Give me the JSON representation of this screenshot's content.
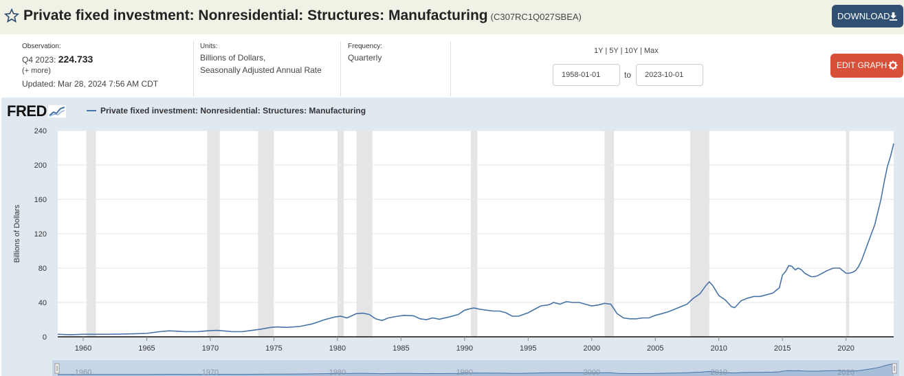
{
  "header": {
    "title": "Private fixed investment: Nonresidential: Structures: Manufacturing",
    "series_id": "(C307RC1Q027SBEA)",
    "download_label": "DOWNLOAD",
    "edit_label": "EDIT GRAPH"
  },
  "meta": {
    "observation_label": "Observation:",
    "observation_period": "Q4 2023:",
    "observation_value": "224.733",
    "more_label": "(+ more)",
    "updated": "Updated: Mar 28, 2024 7:56 AM CDT",
    "units_label": "Units:",
    "units_line1": "Billions of Dollars,",
    "units_line2": "Seasonally Adjusted Annual Rate",
    "frequency_label": "Frequency:",
    "frequency_value": "Quarterly"
  },
  "range": {
    "r1": "1Y",
    "r5": "5Y",
    "r10": "10Y",
    "rmax": "Max",
    "sep": "|",
    "start": "1958-01-01",
    "to": "to",
    "end": "2023-10-01"
  },
  "logo": "FRED",
  "colors": {
    "line": "#4572a7",
    "recession": "#e5e5e5",
    "accent": "#305073",
    "edit": "#d9503a"
  },
  "chart_data": {
    "type": "line",
    "title": "Private fixed investment: Nonresidential: Structures: Manufacturing",
    "xlabel": "",
    "ylabel": "Billions of Dollars",
    "ylim": [
      0,
      240
    ],
    "xlim": [
      1958.0,
      2023.75
    ],
    "y_ticks": [
      0,
      40,
      80,
      120,
      160,
      200,
      240
    ],
    "x_ticks": [
      1960,
      1965,
      1970,
      1975,
      1980,
      1985,
      1990,
      1995,
      2000,
      2005,
      2010,
      2015,
      2020
    ],
    "navigator_ticks": [
      1960,
      1970,
      1980,
      1990,
      2000,
      2010,
      2020
    ],
    "grid": true,
    "legend": "top-left",
    "recessions": [
      [
        1960.25,
        1961.0
      ],
      [
        1969.75,
        1970.75
      ],
      [
        1973.75,
        1975.0
      ],
      [
        1980.0,
        1980.5
      ],
      [
        1981.5,
        1982.75
      ],
      [
        1990.5,
        1991.0
      ],
      [
        2001.0,
        2001.75
      ],
      [
        2007.75,
        2009.25
      ],
      [
        2020.0,
        2020.25
      ]
    ],
    "series": [
      {
        "name": "Private fixed investment: Nonresidential: Structures: Manufacturing",
        "x": [
          1958.0,
          1959.0,
          1960.0,
          1961.0,
          1962.0,
          1963.0,
          1964.0,
          1965.0,
          1966.0,
          1966.75,
          1967.5,
          1968.0,
          1969.0,
          1969.75,
          1970.5,
          1971.0,
          1971.75,
          1972.5,
          1973.0,
          1974.0,
          1974.75,
          1975.25,
          1976.0,
          1977.0,
          1978.0,
          1979.0,
          1979.75,
          1980.25,
          1980.75,
          1981.5,
          1982.0,
          1982.5,
          1983.0,
          1983.5,
          1984.0,
          1984.75,
          1985.25,
          1986.0,
          1986.5,
          1987.0,
          1987.5,
          1988.0,
          1988.75,
          1989.5,
          1990.0,
          1990.5,
          1990.75,
          1991.25,
          1991.75,
          1992.25,
          1992.75,
          1993.25,
          1993.75,
          1994.25,
          1995.0,
          1995.5,
          1996.0,
          1996.5,
          1996.75,
          1997.0,
          1997.5,
          1998.0,
          1998.5,
          1999.0,
          1999.5,
          2000.0,
          2000.5,
          2001.0,
          2001.5,
          2002.0,
          2002.5,
          2003.0,
          2003.5,
          2004.0,
          2004.5,
          2005.0,
          2005.5,
          2006.0,
          2006.5,
          2007.0,
          2007.5,
          2008.0,
          2008.5,
          2008.75,
          2009.0,
          2009.25,
          2009.5,
          2010.0,
          2010.5,
          2011.0,
          2011.25,
          2011.75,
          2012.25,
          2012.75,
          2013.25,
          2013.75,
          2014.25,
          2014.75,
          2015.0,
          2015.25,
          2015.5,
          2015.75,
          2016.0,
          2016.25,
          2016.5,
          2016.75,
          2017.0,
          2017.25,
          2017.5,
          2017.75,
          2018.0,
          2018.5,
          2019.0,
          2019.5,
          2019.75,
          2020.0,
          2020.25,
          2020.5,
          2020.75,
          2021.0,
          2021.25,
          2021.5,
          2021.75,
          2022.0,
          2022.25,
          2022.5,
          2022.75,
          2023.0,
          2023.25,
          2023.5,
          2023.75
        ],
        "values": [
          3,
          2.5,
          3,
          3,
          3,
          3.2,
          3.5,
          4,
          6,
          7,
          6.5,
          6,
          6,
          7,
          7.5,
          7,
          6,
          6,
          7,
          9,
          11,
          11.5,
          11,
          12,
          15,
          20,
          23,
          24,
          22,
          27,
          27.5,
          26,
          21,
          19,
          22,
          24,
          25,
          24.5,
          21,
          20,
          22,
          20.5,
          23,
          26,
          31,
          33,
          33.5,
          32,
          31,
          30,
          30,
          28,
          24,
          24,
          28,
          32,
          36,
          37,
          38,
          40,
          38,
          41,
          40,
          40,
          38,
          36,
          37,
          39,
          38,
          27,
          22,
          21,
          21,
          22,
          22,
          25,
          27,
          29,
          32,
          35,
          38,
          45,
          50,
          55,
          60,
          64,
          60,
          48,
          43,
          35,
          34,
          42,
          45,
          47,
          47,
          49,
          51,
          57,
          72,
          76,
          83,
          82,
          78,
          80,
          78,
          74,
          72,
          70,
          70,
          71,
          73,
          77,
          80,
          80,
          77,
          74,
          74,
          75,
          77,
          82,
          90,
          100,
          110,
          120,
          130,
          145,
          160,
          180,
          198,
          210,
          225
        ]
      }
    ]
  }
}
